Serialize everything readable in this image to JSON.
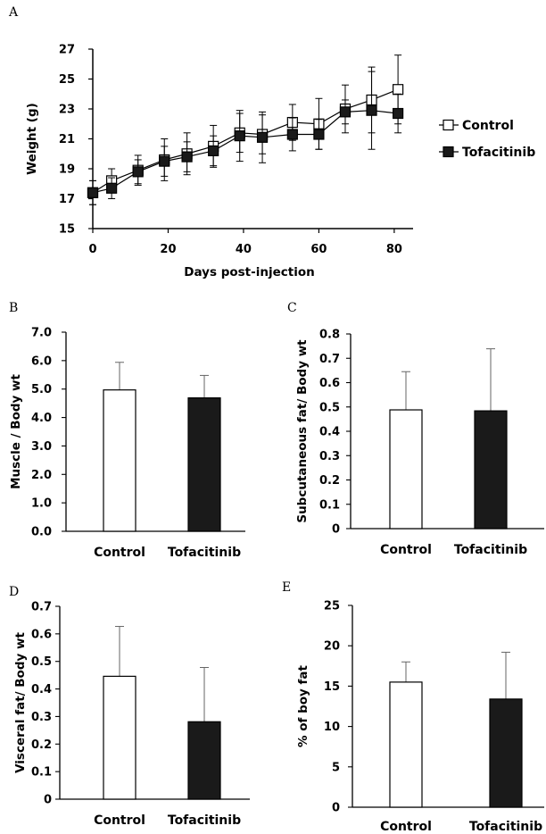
{
  "chart_data": [
    {
      "panel": "A",
      "type": "line",
      "xlabel": "Days post-injection",
      "ylabel": "Weight (g)",
      "xlim": [
        0,
        85
      ],
      "ylim": [
        15,
        27
      ],
      "xticks": [
        0,
        20,
        40,
        60,
        80
      ],
      "yticks": [
        15,
        17,
        19,
        21,
        23,
        25,
        27
      ],
      "legend_position": "right",
      "series": [
        {
          "name": "Control",
          "marker": "open-square",
          "color": "#ffffff",
          "points": [
            {
              "x": 0,
              "y": 17.4,
              "err": 0.8
            },
            {
              "x": 5,
              "y": 18.2,
              "err": 0.8
            },
            {
              "x": 12,
              "y": 18.9,
              "err": 1.0
            },
            {
              "x": 19,
              "y": 19.6,
              "err": 1.4
            },
            {
              "x": 25,
              "y": 20.0,
              "err": 1.4
            },
            {
              "x": 32,
              "y": 20.5,
              "err": 1.4
            },
            {
              "x": 39,
              "y": 21.4,
              "err": 1.3
            },
            {
              "x": 45,
              "y": 21.3,
              "err": 1.3
            },
            {
              "x": 53,
              "y": 22.1,
              "err": 1.2
            },
            {
              "x": 60,
              "y": 22.0,
              "err": 1.7
            },
            {
              "x": 67,
              "y": 23.0,
              "err": 1.6
            },
            {
              "x": 74,
              "y": 23.6,
              "err": 2.2
            },
            {
              "x": 81,
              "y": 24.3,
              "err": 2.3
            }
          ]
        },
        {
          "name": "Tofacitinib",
          "marker": "filled-square",
          "color": "#1a1a1a",
          "points": [
            {
              "x": 0,
              "y": 17.4,
              "err": 0.8
            },
            {
              "x": 5,
              "y": 17.7,
              "err": 0.7
            },
            {
              "x": 12,
              "y": 18.8,
              "err": 0.8
            },
            {
              "x": 19,
              "y": 19.5,
              "err": 1.0
            },
            {
              "x": 25,
              "y": 19.8,
              "err": 1.0
            },
            {
              "x": 32,
              "y": 20.2,
              "err": 1.0
            },
            {
              "x": 39,
              "y": 21.2,
              "err": 1.7
            },
            {
              "x": 45,
              "y": 21.1,
              "err": 1.7
            },
            {
              "x": 53,
              "y": 21.3,
              "err": 1.1
            },
            {
              "x": 60,
              "y": 21.3,
              "err": 1.0
            },
            {
              "x": 67,
              "y": 22.8,
              "err": 0.8
            },
            {
              "x": 74,
              "y": 22.9,
              "err": 2.6
            },
            {
              "x": 81,
              "y": 22.7,
              "err": 1.3
            }
          ]
        }
      ]
    },
    {
      "panel": "B",
      "type": "bar",
      "ylabel": "Muscle / Body wt",
      "ylim": [
        0,
        7
      ],
      "yticks": [
        "0.0",
        "1.0",
        "2.0",
        "3.0",
        "4.0",
        "5.0",
        "6.0",
        "7.0"
      ],
      "categories": [
        "Control",
        "Tofacitinib"
      ],
      "values": [
        4.97,
        4.69
      ],
      "errors": [
        0.97,
        0.79
      ],
      "colors": [
        "#ffffff",
        "#1a1a1a"
      ]
    },
    {
      "panel": "C",
      "type": "bar",
      "ylabel": "Subcutaneous fat/ Body wt",
      "ylim": [
        0,
        0.8
      ],
      "yticks": [
        "0",
        "0.1",
        "0.2",
        "0.3",
        "0.4",
        "0.5",
        "0.6",
        "0.7",
        "0.8"
      ],
      "categories": [
        "Control",
        "Tofacitinib"
      ],
      "values": [
        0.488,
        0.484
      ],
      "errors": [
        0.157,
        0.255
      ],
      "colors": [
        "#ffffff",
        "#1a1a1a"
      ]
    },
    {
      "panel": "D",
      "type": "bar",
      "ylabel": "Visceral fat/ Body wt",
      "ylim": [
        0,
        0.7
      ],
      "yticks": [
        "0",
        "0.1",
        "0.2",
        "0.3",
        "0.4",
        "0.5",
        "0.6",
        "0.7"
      ],
      "categories": [
        "Control",
        "Tofacitinib"
      ],
      "values": [
        0.446,
        0.281
      ],
      "errors": [
        0.181,
        0.197
      ],
      "colors": [
        "#ffffff",
        "#1a1a1a"
      ]
    },
    {
      "panel": "E",
      "type": "bar",
      "ylabel": "% of boy fat",
      "ylim": [
        0,
        25
      ],
      "yticks": [
        "0",
        "5",
        "10",
        "15",
        "20",
        "25"
      ],
      "categories": [
        "Control",
        "Tofacitinib"
      ],
      "values": [
        15.5,
        13.4
      ],
      "errors": [
        2.5,
        5.8
      ],
      "colors": [
        "#ffffff",
        "#1a1a1a"
      ]
    }
  ]
}
